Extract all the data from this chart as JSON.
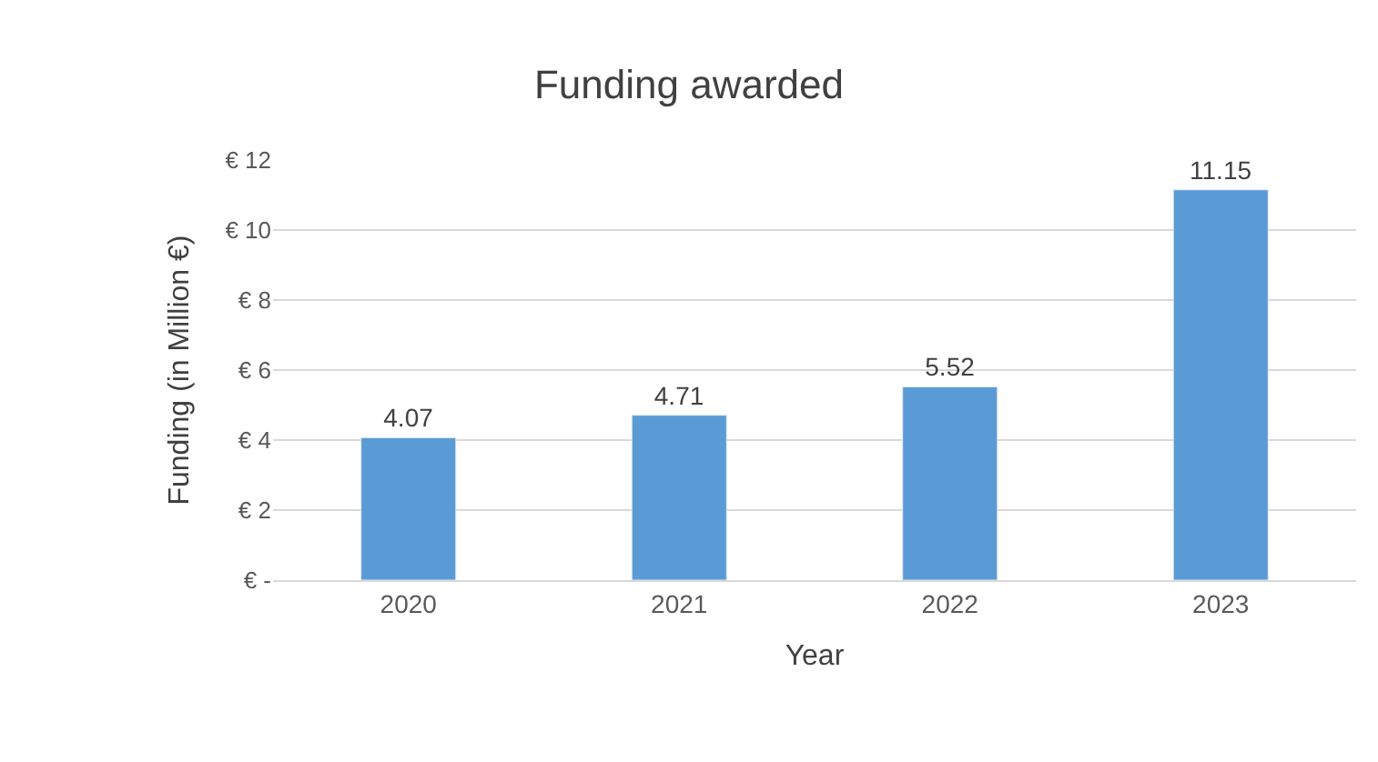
{
  "chart_data": {
    "type": "bar",
    "title": "Funding awarded",
    "xlabel": "Year",
    "ylabel": "Funding (in Million €)",
    "categories": [
      "2020",
      "2021",
      "2022",
      "2023"
    ],
    "values": [
      4.07,
      4.71,
      5.52,
      11.15
    ],
    "color": "#5b9bd5",
    "ylim": [
      0,
      12
    ],
    "yticks": [
      {
        "value": 0,
        "label": "€ -"
      },
      {
        "value": 2,
        "label": "€ 2"
      },
      {
        "value": 4,
        "label": "€ 4"
      },
      {
        "value": 6,
        "label": "€ 6"
      },
      {
        "value": 8,
        "label": "€ 8"
      },
      {
        "value": 10,
        "label": "€ 10"
      },
      {
        "value": 12,
        "label": "€ 12"
      }
    ],
    "grid": "y",
    "data_labels": true
  }
}
